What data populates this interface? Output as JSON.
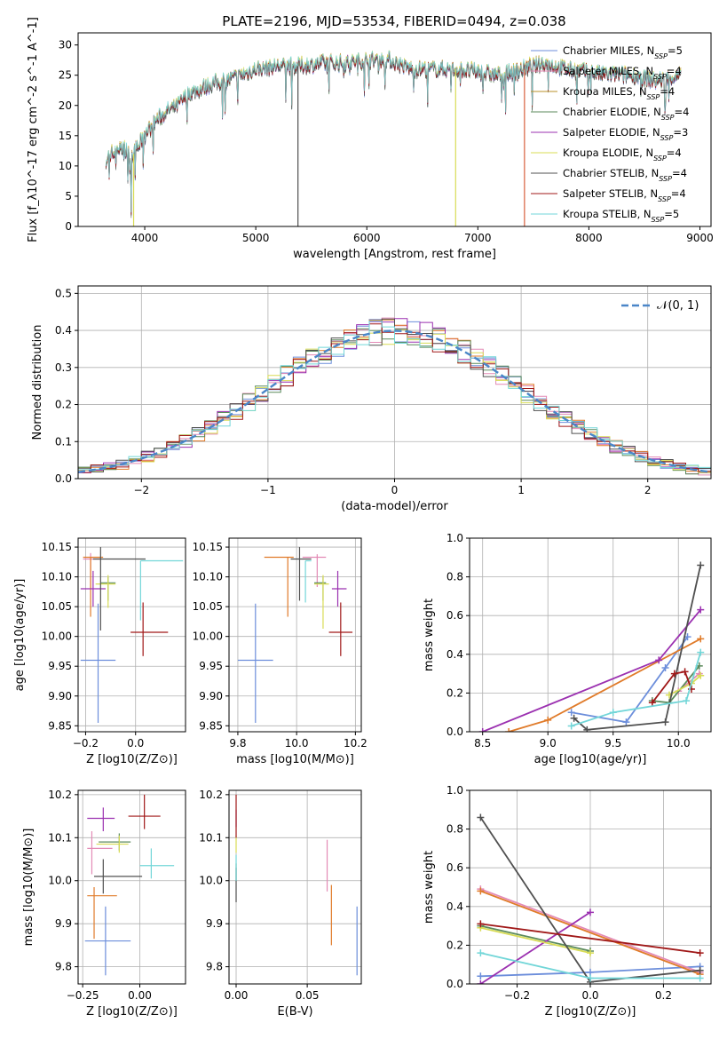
{
  "figure": {
    "title": "PLATE=2196, MJD=53534, FIBERID=0494, z=0.038"
  },
  "chart_data": [
    {
      "id": "spectrum",
      "type": "line",
      "xlabel": "wavelength [Angstrom, rest frame]",
      "ylabel": "Flux [f_λ10^-17 erg cm^-2 s^-1 A^-1]",
      "xlim": [
        3400,
        9100
      ],
      "ylim": [
        0,
        32
      ],
      "xticks": [
        4000,
        5000,
        6000,
        7000,
        8000,
        9000
      ],
      "yticks": [
        0,
        5,
        10,
        15,
        20,
        25,
        30
      ],
      "grid": false,
      "legend_position": "top-right",
      "series": [
        {
          "name": "Chabrier MILES, N_SSP=5",
          "color": "#6c8edb"
        },
        {
          "name": "Salpeter MILES, N_SSP=4",
          "color": "#e38ab5"
        },
        {
          "name": "Kroupa MILES, N_SSP=4",
          "color": "#b8912a"
        },
        {
          "name": "Chabrier ELODIE, N_SSP=4",
          "color": "#5b8a5b"
        },
        {
          "name": "Salpeter ELODIE, N_SSP=3",
          "color": "#9b30b0"
        },
        {
          "name": "Kroupa ELODIE, N_SSP=4",
          "color": "#d8dc55"
        },
        {
          "name": "Chabrier STELIB, N_SSP=4",
          "color": "#505050"
        },
        {
          "name": "Salpeter STELIB, N_SSP=4",
          "color": "#a01818"
        },
        {
          "name": "Kroupa STELIB, N_SSP=5",
          "color": "#72d6d8"
        }
      ],
      "spectrum_shape": {
        "x": [
          3650,
          3750,
          3900,
          4000,
          4100,
          4200,
          4300,
          4400,
          4600,
          4800,
          5000,
          5200,
          5400,
          5600,
          5800,
          6000,
          6200,
          6400,
          6600,
          6800,
          7000,
          7200,
          7400,
          7600,
          7800,
          8000,
          8200,
          8400,
          8600,
          8830
        ],
        "y": [
          11,
          13,
          12,
          15,
          17.5,
          19,
          20,
          22,
          23.5,
          24.5,
          26,
          26.5,
          26.5,
          27,
          27,
          27.5,
          27.5,
          26,
          26,
          26,
          25.5,
          25,
          26,
          27,
          26,
          25.5,
          25,
          25,
          24,
          25
        ]
      },
      "spikes": [
        {
          "x": 3900,
          "color": "#d8dc55"
        },
        {
          "x": 5380,
          "color": "#505050"
        },
        {
          "x": 6800,
          "color": "#d8dc55"
        },
        {
          "x": 7420,
          "color": "#d95f3c"
        }
      ]
    },
    {
      "id": "residual-hist",
      "type": "line",
      "xlabel": "(data-model)/error",
      "ylabel": "Normed distribution",
      "xlim": [
        -2.5,
        2.5
      ],
      "ylim": [
        0,
        0.52
      ],
      "xticks": [
        -2,
        -1,
        0,
        1,
        2
      ],
      "yticks": [
        0.0,
        0.1,
        0.2,
        0.3,
        0.4,
        0.5
      ],
      "grid": true,
      "legend": [
        {
          "name": "𝒩(0, 1)",
          "color": "#4a86c8",
          "style": "dashed"
        }
      ],
      "bin_width": 0.1,
      "step_colors": [
        "#6c8edb",
        "#e38ab5",
        "#e07b2a",
        "#5b8a5b",
        "#9b30b0",
        "#d8dc55",
        "#505050",
        "#a01818",
        "#72d6d8"
      ]
    },
    {
      "id": "age-vs-Z",
      "type": "scatter",
      "xlabel": "Z [log10(Z/Z⊙)]",
      "ylabel": "age  [log10(age/yr)]",
      "xlim": [
        -0.23,
        0.2
      ],
      "ylim": [
        9.84,
        10.165
      ],
      "xticks": [
        -0.2,
        0.0
      ],
      "yticks": [
        9.85,
        9.9,
        9.95,
        10.0,
        10.05,
        10.1,
        10.15
      ],
      "grid": true,
      "points": [
        {
          "color": "#6c8edb",
          "x": -0.15,
          "xerr": [
            0.07,
            0.07
          ],
          "y": 9.96,
          "yerr": [
            0.105,
            0.095
          ]
        },
        {
          "color": "#e38ab5",
          "x": -0.18,
          "xerr": [
            0.03,
            0.04
          ],
          "y": 10.13,
          "yerr": [
            0.05,
            0.01
          ]
        },
        {
          "color": "#e07b2a",
          "x": -0.18,
          "xerr": [
            0.03,
            0.05
          ],
          "y": 10.133,
          "yerr": [
            0.1,
            0.0
          ]
        },
        {
          "color": "#5b8a5b",
          "x": -0.11,
          "xerr": [
            0.03,
            0.03
          ],
          "y": 10.09,
          "yerr": [
            0.03,
            0.01
          ]
        },
        {
          "color": "#9b30b0",
          "x": -0.17,
          "xerr": [
            0.05,
            0.05
          ],
          "y": 10.08,
          "yerr": [
            0.03,
            0.03
          ]
        },
        {
          "color": "#d8dc55",
          "x": -0.11,
          "xerr": [
            0.05,
            0.03
          ],
          "y": 10.088,
          "yerr": [
            0.04,
            0.015
          ]
        },
        {
          "color": "#505050",
          "x": -0.14,
          "xerr": [
            0.03,
            0.18
          ],
          "y": 10.13,
          "yerr": [
            0.12,
            0.02
          ]
        },
        {
          "color": "#a01818",
          "x": 0.03,
          "xerr": [
            0.05,
            0.1
          ],
          "y": 10.007,
          "yerr": [
            0.04,
            0.05
          ]
        },
        {
          "color": "#72d6d8",
          "x": 0.02,
          "xerr": [
            0.0,
            0.17
          ],
          "y": 10.127,
          "yerr": [
            0.1,
            0.0
          ]
        }
      ]
    },
    {
      "id": "age-vs-mass",
      "type": "scatter",
      "xlabel": "mass [log10(M/M⊙)]",
      "xlim": [
        9.77,
        10.22
      ],
      "ylim": [
        9.84,
        10.165
      ],
      "xticks": [
        9.8,
        10.0,
        10.2
      ],
      "yticks": [
        9.85,
        9.9,
        9.95,
        10.0,
        10.05,
        10.1,
        10.15
      ],
      "grid": true,
      "points": [
        {
          "color": "#6c8edb",
          "x": 9.86,
          "xerr": [
            0.06,
            0.06
          ],
          "y": 9.96,
          "yerr": [
            0.105,
            0.095
          ]
        },
        {
          "color": "#e38ab5",
          "x": 10.07,
          "xerr": [
            0.05,
            0.03
          ],
          "y": 10.133,
          "yerr": [
            0.05,
            0.005
          ]
        },
        {
          "color": "#e07b2a",
          "x": 9.97,
          "xerr": [
            0.08,
            0.02
          ],
          "y": 10.133,
          "yerr": [
            0.1,
            0.0
          ]
        },
        {
          "color": "#5b8a5b",
          "x": 10.09,
          "xerr": [
            0.03,
            0.01
          ],
          "y": 10.09,
          "yerr": [
            0.03,
            0.01
          ]
        },
        {
          "color": "#9b30b0",
          "x": 10.14,
          "xerr": [
            0.02,
            0.03
          ],
          "y": 10.08,
          "yerr": [
            0.03,
            0.03
          ]
        },
        {
          "color": "#d8dc55",
          "x": 10.09,
          "xerr": [
            0.03,
            0.02
          ],
          "y": 10.088,
          "yerr": [
            0.075,
            0.015
          ]
        },
        {
          "color": "#505050",
          "x": 10.01,
          "xerr": [
            0.03,
            0.04
          ],
          "y": 10.13,
          "yerr": [
            0.07,
            0.02
          ]
        },
        {
          "color": "#a01818",
          "x": 10.15,
          "xerr": [
            0.04,
            0.04
          ],
          "y": 10.007,
          "yerr": [
            0.04,
            0.05
          ]
        },
        {
          "color": "#72d6d8",
          "x": 10.03,
          "xerr": [
            0.0,
            0.02
          ],
          "y": 10.127,
          "yerr": [
            0.07,
            0.0
          ]
        }
      ]
    },
    {
      "id": "mass-weight-vs-age",
      "type": "line",
      "xlabel": "age  [log10(age/yr)]",
      "ylabel": "mass weight",
      "xlim": [
        8.4,
        10.25
      ],
      "ylim": [
        0,
        1.0
      ],
      "xticks": [
        8.5,
        9.0,
        9.5,
        10.0
      ],
      "yticks": [
        0.0,
        0.2,
        0.4,
        0.6,
        0.8,
        1.0
      ],
      "grid": true,
      "series": [
        {
          "color": "#6c8edb",
          "x": [
            9.18,
            9.6,
            9.9,
            10.07
          ],
          "y": [
            0.1,
            0.05,
            0.33,
            0.49
          ]
        },
        {
          "color": "#e38ab5",
          "x": [
            10.0,
            10.16
          ],
          "y": [
            0.21,
            0.3
          ]
        },
        {
          "color": "#e07b2a",
          "x": [
            8.7,
            9.0,
            10.17
          ],
          "y": [
            0.0,
            0.06,
            0.48
          ]
        },
        {
          "color": "#5b8a5b",
          "x": [
            9.8,
            9.93,
            10.16
          ],
          "y": [
            0.16,
            0.15,
            0.34
          ]
        },
        {
          "color": "#9b30b0",
          "x": [
            8.5,
            9.85,
            10.17
          ],
          "y": [
            0.0,
            0.37,
            0.63
          ]
        },
        {
          "color": "#d8dc55",
          "x": [
            9.93,
            10.1,
            10.17
          ],
          "y": [
            0.19,
            0.25,
            0.29
          ]
        },
        {
          "color": "#505050",
          "x": [
            9.2,
            9.3,
            9.9,
            10.17
          ],
          "y": [
            0.07,
            0.01,
            0.05,
            0.86
          ]
        },
        {
          "color": "#a01818",
          "x": [
            9.8,
            9.97,
            10.05,
            10.1
          ],
          "y": [
            0.15,
            0.3,
            0.31,
            0.22
          ]
        },
        {
          "color": "#72d6d8",
          "x": [
            9.18,
            9.5,
            10.06,
            10.17
          ],
          "y": [
            0.03,
            0.1,
            0.16,
            0.41
          ]
        }
      ]
    },
    {
      "id": "mass-vs-Z",
      "type": "scatter",
      "xlabel": "Z [log10(Z/Z⊙)]",
      "ylabel": "mass [log10(M/M⊙)]",
      "xlim": [
        -0.27,
        0.2
      ],
      "ylim": [
        9.76,
        10.21
      ],
      "xticks": [
        -0.25,
        0.0
      ],
      "yticks": [
        9.8,
        9.9,
        10.0,
        10.1,
        10.2
      ],
      "grid": true,
      "points": [
        {
          "color": "#6c8edb",
          "x": -0.15,
          "xerr": [
            0.09,
            0.11
          ],
          "y": 9.86,
          "yerr": [
            0.08,
            0.08
          ]
        },
        {
          "color": "#e38ab5",
          "x": -0.21,
          "xerr": [
            0.02,
            0.09
          ],
          "y": 10.075,
          "yerr": [
            0.06,
            0.04
          ]
        },
        {
          "color": "#e07b2a",
          "x": -0.2,
          "xerr": [
            0.03,
            0.1
          ],
          "y": 9.965,
          "yerr": [
            0.1,
            0.02
          ]
        },
        {
          "color": "#5b8a5b",
          "x": -0.09,
          "xerr": [
            0.09,
            0.05
          ],
          "y": 10.09,
          "yerr": [
            0.02,
            0.02
          ]
        },
        {
          "color": "#9b30b0",
          "x": -0.16,
          "xerr": [
            0.07,
            0.05
          ],
          "y": 10.145,
          "yerr": [
            0.03,
            0.025
          ]
        },
        {
          "color": "#d8dc55",
          "x": -0.09,
          "xerr": [
            0.1,
            0.04
          ],
          "y": 10.085,
          "yerr": [
            0.02,
            0.02
          ]
        },
        {
          "color": "#505050",
          "x": -0.16,
          "xerr": [
            0.04,
            0.17
          ],
          "y": 10.01,
          "yerr": [
            0.04,
            0.04
          ]
        },
        {
          "color": "#a01818",
          "x": 0.02,
          "xerr": [
            0.07,
            0.07
          ],
          "y": 10.15,
          "yerr": [
            0.03,
            0.05
          ]
        },
        {
          "color": "#72d6d8",
          "x": 0.05,
          "xerr": [
            0.05,
            0.1
          ],
          "y": 10.035,
          "yerr": [
            0.03,
            0.04
          ]
        }
      ]
    },
    {
      "id": "mass-vs-EBV",
      "type": "scatter",
      "xlabel": "E(B-V)",
      "xlim": [
        -0.005,
        0.088
      ],
      "ylim": [
        9.76,
        10.21
      ],
      "xticks": [
        0.0,
        0.05
      ],
      "yticks": [
        9.8,
        9.9,
        10.0,
        10.1,
        10.2
      ],
      "grid": true,
      "points": [
        {
          "color": "#6c8edb",
          "x": 0.085,
          "y": 9.86,
          "yerr": [
            0.08,
            0.08
          ]
        },
        {
          "color": "#e38ab5",
          "x": 0.064,
          "y": 10.035,
          "yerr": [
            0.06,
            0.06
          ]
        },
        {
          "color": "#e07b2a",
          "x": 0.067,
          "y": 9.92,
          "yerr": [
            0.07,
            0.07
          ]
        },
        {
          "color": "#5b8a5b",
          "x": 0.0,
          "y": 10.02,
          "yerr": [
            0.02,
            0.02
          ]
        },
        {
          "color": "#9b30b0",
          "x": 0.0,
          "y": 10.145,
          "yerr": [
            0.02,
            0.02
          ]
        },
        {
          "color": "#d8dc55",
          "x": 0.0,
          "y": 10.085,
          "yerr": [
            0.02,
            0.02
          ]
        },
        {
          "color": "#505050",
          "x": 0.0,
          "y": 9.99,
          "yerr": [
            0.04,
            0.04
          ]
        },
        {
          "color": "#a01818",
          "x": 0.0,
          "y": 10.15,
          "yerr": [
            0.05,
            0.05
          ]
        },
        {
          "color": "#72d6d8",
          "x": 0.0,
          "y": 10.03,
          "yerr": [
            0.03,
            0.03
          ]
        }
      ]
    },
    {
      "id": "mass-weight-vs-Z",
      "type": "line",
      "xlabel": "Z [log10(Z/Z⊙)]",
      "ylabel": "mass weight",
      "xlim": [
        -0.33,
        0.33
      ],
      "ylim": [
        0,
        1.0
      ],
      "xticks": [
        -0.2,
        0.0,
        0.2
      ],
      "yticks": [
        0.0,
        0.2,
        0.4,
        0.6,
        0.8,
        1.0
      ],
      "grid": true,
      "series": [
        {
          "color": "#6c8edb",
          "x": [
            -0.3,
            0.0,
            0.3
          ],
          "y": [
            0.04,
            0.06,
            0.09
          ]
        },
        {
          "color": "#e38ab5",
          "x": [
            -0.3,
            0.3
          ],
          "y": [
            0.49,
            0.06
          ]
        },
        {
          "color": "#e07b2a",
          "x": [
            -0.3,
            0.3
          ],
          "y": [
            0.48,
            0.05
          ]
        },
        {
          "color": "#5b8a5b",
          "x": [
            -0.3,
            0.0
          ],
          "y": [
            0.3,
            0.17
          ]
        },
        {
          "color": "#9b30b0",
          "x": [
            -0.3,
            0.0
          ],
          "y": [
            0.0,
            0.37
          ]
        },
        {
          "color": "#d8dc55",
          "x": [
            -0.3,
            0.0
          ],
          "y": [
            0.29,
            0.16
          ]
        },
        {
          "color": "#505050",
          "x": [
            -0.3,
            0.0,
            0.3
          ],
          "y": [
            0.86,
            0.01,
            0.07
          ]
        },
        {
          "color": "#a01818",
          "x": [
            -0.3,
            0.3
          ],
          "y": [
            0.31,
            0.16
          ]
        },
        {
          "color": "#72d6d8",
          "x": [
            -0.3,
            0.0,
            0.3
          ],
          "y": [
            0.16,
            0.03,
            0.03
          ]
        }
      ]
    }
  ]
}
